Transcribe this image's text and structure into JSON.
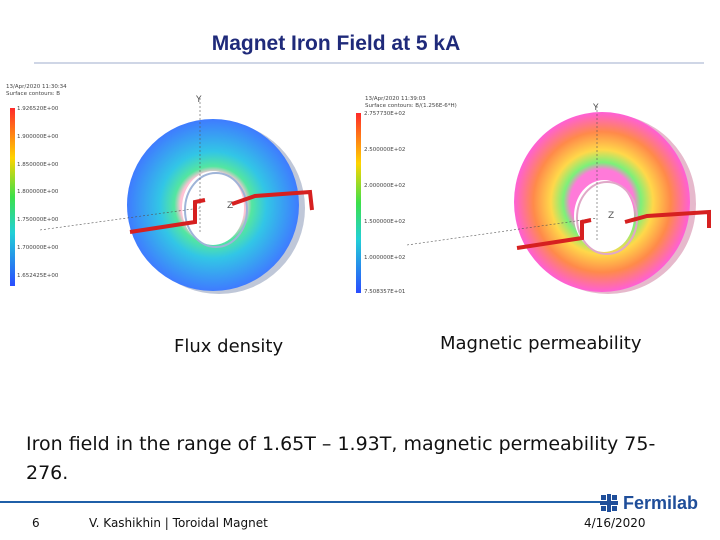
{
  "slide": {
    "title": "Magnet Iron Field at 5 kA",
    "body": "Iron field in the range of 1.65T – 1.93T, magnetic permeability 75-276."
  },
  "left_panel": {
    "timestamp": "13/Apr/2020 11:30:34",
    "legend_title": "Surface contours: B",
    "legend_values": [
      "1.926520E+00",
      "1.900000E+00",
      "1.850000E+00",
      "1.800000E+00",
      "1.750000E+00",
      "1.700000E+00",
      "1.652425E+00"
    ],
    "caption": "Flux density",
    "ring_colors": [
      "#3f7bff",
      "#32c6e6",
      "#54e6a0"
    ]
  },
  "right_panel": {
    "timestamp": "13/Apr/2020 11:39:03",
    "legend_title": "Surface contours: B/(1.256E-6*H)",
    "legend_values": [
      "2.757730E+02",
      "2.500000E+02",
      "2.000000E+02",
      "1.500000E+02",
      "1.000000E+02",
      "7.508357E+01"
    ],
    "caption": "Magnetic permeability",
    "ring_colors": [
      "#ff5fd6",
      "#ffd84a",
      "#7cf07a"
    ]
  },
  "footer": {
    "page_number": "6",
    "author": "V. Kashikhin | Toroidal Magnet",
    "date": "4/16/2020",
    "logo_text": "Fermilab"
  }
}
